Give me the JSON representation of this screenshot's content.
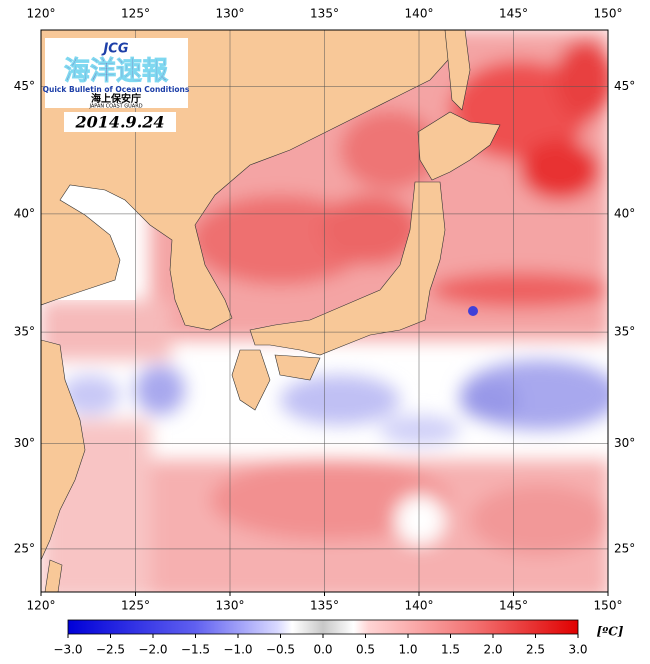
{
  "map": {
    "xlim": [
      120,
      150
    ],
    "ylim": [
      22.9,
      47.1
    ],
    "xticks": [
      {
        "value": 120,
        "label": "120°"
      },
      {
        "value": 125,
        "label": "125°"
      },
      {
        "value": 130,
        "label": "130°"
      },
      {
        "value": 135,
        "label": "135°"
      },
      {
        "value": 140,
        "label": "140°"
      },
      {
        "value": 145,
        "label": "145°"
      },
      {
        "value": 150,
        "label": "150°"
      }
    ],
    "yticks": [
      {
        "value": 25,
        "label": "25°"
      },
      {
        "value": 30,
        "label": "30°"
      },
      {
        "value": 35,
        "label": "35°"
      },
      {
        "value": 40,
        "label": "40°"
      },
      {
        "value": 45,
        "label": "45°"
      }
    ]
  },
  "logo": {
    "abbr": "JCG",
    "title": "海洋速報",
    "subtitle": "Quick Bulletin of Ocean Conditions",
    "agency": "海上保安庁",
    "agency_en": "JAPAN COAST GUARD"
  },
  "date": "2014.9.24",
  "colorbar": {
    "lim": [
      -3,
      3
    ],
    "unit": "[ºC]",
    "ticks": [
      {
        "value": -3,
        "label": "−3.0"
      },
      {
        "value": -2.5,
        "label": "−2.5"
      },
      {
        "value": -2,
        "label": "−2.0"
      },
      {
        "value": -1.5,
        "label": "−1.5"
      },
      {
        "value": -1,
        "label": "−1.0"
      },
      {
        "value": -0.5,
        "label": "−0.5"
      },
      {
        "value": 0,
        "label": "0.0"
      },
      {
        "value": 0.5,
        "label": "0.5"
      },
      {
        "value": 1,
        "label": "1.0"
      },
      {
        "value": 1.5,
        "label": "1.5"
      },
      {
        "value": 2,
        "label": "2.0"
      },
      {
        "value": 2.5,
        "label": "2.5"
      },
      {
        "value": 3,
        "label": "3.0"
      }
    ]
  }
}
